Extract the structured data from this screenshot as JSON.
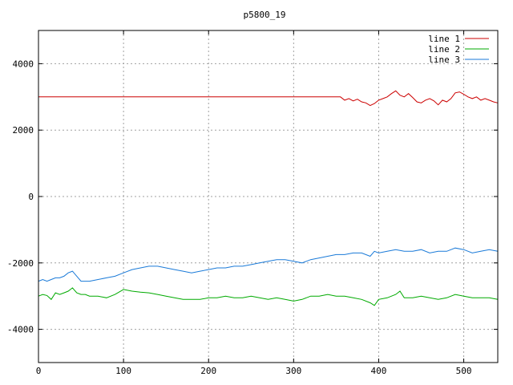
{
  "chart_data": {
    "type": "line",
    "title": "p5800_19",
    "xlabel": "",
    "ylabel": "",
    "xlim": [
      0,
      540
    ],
    "ylim": [
      -5000,
      5000
    ],
    "xticks": [
      0,
      100,
      200,
      300,
      400,
      500
    ],
    "yticks": [
      -4000,
      -2000,
      0,
      2000,
      4000
    ],
    "grid": true,
    "legend_position": "top-right",
    "series": [
      {
        "name": "line 1",
        "color": "#cc0000",
        "points": [
          [
            0,
            3000
          ],
          [
            100,
            3000
          ],
          [
            200,
            3000
          ],
          [
            300,
            3000
          ],
          [
            355,
            3000
          ],
          [
            360,
            2900
          ],
          [
            365,
            2950
          ],
          [
            370,
            2880
          ],
          [
            375,
            2930
          ],
          [
            380,
            2850
          ],
          [
            385,
            2820
          ],
          [
            390,
            2740
          ],
          [
            395,
            2800
          ],
          [
            400,
            2900
          ],
          [
            405,
            2950
          ],
          [
            410,
            3000
          ],
          [
            415,
            3100
          ],
          [
            420,
            3180
          ],
          [
            425,
            3050
          ],
          [
            430,
            3000
          ],
          [
            435,
            3100
          ],
          [
            440,
            2980
          ],
          [
            445,
            2850
          ],
          [
            450,
            2820
          ],
          [
            455,
            2900
          ],
          [
            460,
            2950
          ],
          [
            465,
            2880
          ],
          [
            470,
            2760
          ],
          [
            475,
            2900
          ],
          [
            480,
            2850
          ],
          [
            485,
            2950
          ],
          [
            490,
            3120
          ],
          [
            495,
            3150
          ],
          [
            500,
            3080
          ],
          [
            505,
            3000
          ],
          [
            510,
            2950
          ],
          [
            515,
            3000
          ],
          [
            520,
            2900
          ],
          [
            525,
            2950
          ],
          [
            530,
            2900
          ],
          [
            535,
            2850
          ],
          [
            540,
            2820
          ]
        ]
      },
      {
        "name": "line 2",
        "color": "#00aa00",
        "points": [
          [
            0,
            -3000
          ],
          [
            5,
            -2950
          ],
          [
            10,
            -2980
          ],
          [
            15,
            -3100
          ],
          [
            20,
            -2900
          ],
          [
            25,
            -2950
          ],
          [
            30,
            -2900
          ],
          [
            35,
            -2850
          ],
          [
            40,
            -2750
          ],
          [
            45,
            -2900
          ],
          [
            50,
            -2950
          ],
          [
            55,
            -2950
          ],
          [
            60,
            -3000
          ],
          [
            70,
            -3000
          ],
          [
            80,
            -3050
          ],
          [
            90,
            -2950
          ],
          [
            100,
            -2800
          ],
          [
            110,
            -2850
          ],
          [
            120,
            -2880
          ],
          [
            130,
            -2900
          ],
          [
            140,
            -2950
          ],
          [
            150,
            -3000
          ],
          [
            160,
            -3050
          ],
          [
            170,
            -3100
          ],
          [
            180,
            -3100
          ],
          [
            190,
            -3100
          ],
          [
            200,
            -3050
          ],
          [
            210,
            -3050
          ],
          [
            220,
            -3000
          ],
          [
            230,
            -3050
          ],
          [
            240,
            -3050
          ],
          [
            250,
            -3000
          ],
          [
            260,
            -3050
          ],
          [
            270,
            -3100
          ],
          [
            280,
            -3050
          ],
          [
            290,
            -3100
          ],
          [
            300,
            -3150
          ],
          [
            310,
            -3100
          ],
          [
            320,
            -3000
          ],
          [
            330,
            -3000
          ],
          [
            340,
            -2950
          ],
          [
            350,
            -3000
          ],
          [
            360,
            -3000
          ],
          [
            370,
            -3050
          ],
          [
            380,
            -3100
          ],
          [
            390,
            -3200
          ],
          [
            395,
            -3280
          ],
          [
            400,
            -3100
          ],
          [
            410,
            -3050
          ],
          [
            420,
            -2950
          ],
          [
            425,
            -2850
          ],
          [
            430,
            -3050
          ],
          [
            440,
            -3050
          ],
          [
            450,
            -3000
          ],
          [
            460,
            -3050
          ],
          [
            470,
            -3100
          ],
          [
            480,
            -3050
          ],
          [
            490,
            -2950
          ],
          [
            500,
            -3000
          ],
          [
            510,
            -3050
          ],
          [
            520,
            -3050
          ],
          [
            530,
            -3050
          ],
          [
            540,
            -3100
          ]
        ]
      },
      {
        "name": "line 3",
        "color": "#1a7ad8",
        "points": [
          [
            0,
            -2550
          ],
          [
            5,
            -2500
          ],
          [
            10,
            -2550
          ],
          [
            15,
            -2500
          ],
          [
            20,
            -2450
          ],
          [
            25,
            -2450
          ],
          [
            30,
            -2400
          ],
          [
            35,
            -2300
          ],
          [
            40,
            -2250
          ],
          [
            45,
            -2400
          ],
          [
            50,
            -2550
          ],
          [
            60,
            -2550
          ],
          [
            70,
            -2500
          ],
          [
            80,
            -2450
          ],
          [
            90,
            -2400
          ],
          [
            100,
            -2300
          ],
          [
            110,
            -2200
          ],
          [
            120,
            -2150
          ],
          [
            130,
            -2100
          ],
          [
            140,
            -2100
          ],
          [
            150,
            -2150
          ],
          [
            160,
            -2200
          ],
          [
            170,
            -2250
          ],
          [
            180,
            -2300
          ],
          [
            190,
            -2250
          ],
          [
            200,
            -2200
          ],
          [
            210,
            -2150
          ],
          [
            220,
            -2150
          ],
          [
            230,
            -2100
          ],
          [
            240,
            -2100
          ],
          [
            250,
            -2050
          ],
          [
            260,
            -2000
          ],
          [
            270,
            -1950
          ],
          [
            280,
            -1900
          ],
          [
            290,
            -1900
          ],
          [
            300,
            -1950
          ],
          [
            310,
            -2000
          ],
          [
            320,
            -1900
          ],
          [
            330,
            -1850
          ],
          [
            340,
            -1800
          ],
          [
            350,
            -1750
          ],
          [
            360,
            -1750
          ],
          [
            370,
            -1700
          ],
          [
            380,
            -1700
          ],
          [
            390,
            -1800
          ],
          [
            395,
            -1650
          ],
          [
            400,
            -1700
          ],
          [
            410,
            -1650
          ],
          [
            420,
            -1600
          ],
          [
            430,
            -1650
          ],
          [
            440,
            -1650
          ],
          [
            450,
            -1600
          ],
          [
            460,
            -1700
          ],
          [
            470,
            -1650
          ],
          [
            480,
            -1650
          ],
          [
            490,
            -1550
          ],
          [
            500,
            -1600
          ],
          [
            510,
            -1700
          ],
          [
            520,
            -1650
          ],
          [
            530,
            -1600
          ],
          [
            540,
            -1650
          ]
        ]
      }
    ]
  }
}
